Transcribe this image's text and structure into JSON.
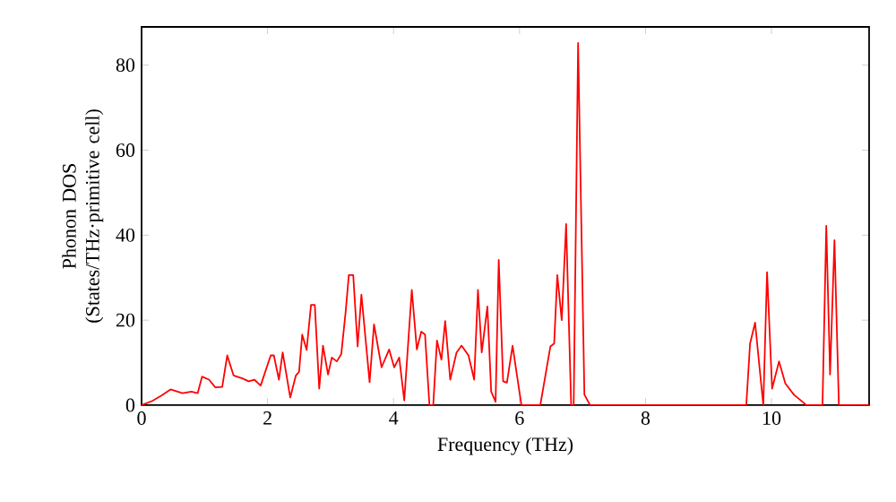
{
  "chart_data": {
    "type": "line",
    "xlabel": "Frequency (THz)",
    "ylabel": "Phonon DOS (States/THz·primitive cell)",
    "xlim": [
      0,
      11.55
    ],
    "ylim": [
      0,
      89
    ],
    "xticks": [
      0,
      2,
      4,
      6,
      8,
      10
    ],
    "yticks": [
      0,
      20,
      40,
      60,
      80
    ],
    "marker": "none",
    "line_style": "solid",
    "series": [
      {
        "color": "#ff0000",
        "x": [
          0,
          0.17,
          0.31,
          0.46,
          0.65,
          0.79,
          0.89,
          0.96,
          1.07,
          1.17,
          1.28,
          1.36,
          1.46,
          1.6,
          1.7,
          1.79,
          1.89,
          2.05,
          2.1,
          2.18,
          2.24,
          2.36,
          2.45,
          2.5,
          2.55,
          2.62,
          2.69,
          2.75,
          2.82,
          2.88,
          2.96,
          3.02,
          3.1,
          3.17,
          3.24,
          3.29,
          3.36,
          3.43,
          3.49,
          3.55,
          3.62,
          3.69,
          3.81,
          3.93,
          4.01,
          4.09,
          4.17,
          4.29,
          4.37,
          4.44,
          4.5,
          4.57,
          4.63,
          4.69,
          4.76,
          4.82,
          4.9,
          5.0,
          5.08,
          5.19,
          5.28,
          5.34,
          5.4,
          5.49,
          5.55,
          5.62,
          5.67,
          5.74,
          5.8,
          5.89,
          5.96,
          6.03,
          6.33,
          6.49,
          6.55,
          6.6,
          6.67,
          6.74,
          6.82,
          6.86,
          6.93,
          7.03,
          7.12,
          9.6,
          9.66,
          9.74,
          9.87,
          9.93,
          10.01,
          10.12,
          10.22,
          10.36,
          10.5,
          10.55,
          10.81,
          10.87,
          10.93,
          11.0,
          11.07,
          11.55
        ],
        "values": [
          0,
          1,
          2.2,
          3.7,
          2.8,
          3.2,
          2.8,
          6.7,
          6,
          4.2,
          4.3,
          11.7,
          7,
          6.3,
          5.6,
          6,
          4.6,
          11.7,
          11.7,
          6,
          12.4,
          1.8,
          7,
          7.8,
          16.6,
          13,
          23.6,
          23.6,
          3.9,
          14,
          7.2,
          11.2,
          10.3,
          12,
          22,
          30.6,
          30.6,
          13.8,
          26,
          16.5,
          5.4,
          19,
          8.9,
          13.1,
          8.9,
          11.2,
          1.1,
          27.1,
          13.1,
          17.3,
          16.6,
          0,
          0,
          15.2,
          10.7,
          19.8,
          6,
          12.4,
          14,
          11.7,
          6,
          27.1,
          12.4,
          23.2,
          3.2,
          0.8,
          34.2,
          5.6,
          5.3,
          14,
          7,
          0,
          0,
          13.8,
          14.5,
          30.6,
          20,
          42.6,
          0,
          0,
          85.2,
          2.5,
          0,
          0,
          14.5,
          19.4,
          0,
          31.3,
          3.9,
          10.3,
          5.1,
          2.4,
          0.7,
          0,
          0,
          42.2,
          7.2,
          38.8,
          0,
          0
        ]
      }
    ]
  }
}
